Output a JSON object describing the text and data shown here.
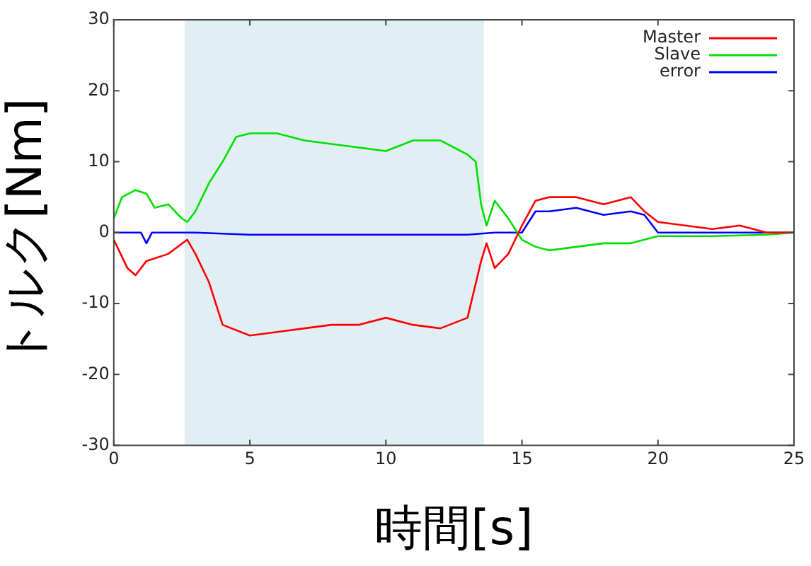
{
  "chart_data": {
    "type": "line",
    "xlabel": "時間[s]",
    "ylabel": "トルク[Nm]",
    "xlim": [
      0,
      25
    ],
    "xticks": [
      0,
      5,
      10,
      15,
      20,
      25
    ],
    "ylim": [
      -30,
      30
    ],
    "yticks": [
      -30,
      -20,
      -10,
      0,
      10,
      20,
      30
    ],
    "grid": false,
    "legend": "top right",
    "marker": "none",
    "line_style": "solid",
    "bands": [
      {
        "axis": "x",
        "from": 2.6,
        "to": 13.6,
        "color": "#e1eff4"
      }
    ],
    "series": [
      {
        "name": "Master",
        "color": "#ff0000",
        "x": [
          0,
          0.5,
          0.8,
          1.2,
          2,
          2.7,
          3,
          3.5,
          4,
          5,
          6,
          7,
          8,
          9,
          10,
          11,
          12,
          13,
          13.5,
          13.7,
          14,
          14.5,
          15,
          15.5,
          16,
          17,
          18,
          19,
          19.5,
          20,
          21,
          22,
          23,
          24,
          25
        ],
        "values": [
          -1,
          -5,
          -6,
          -4,
          -3,
          -1,
          -3,
          -7,
          -13,
          -14.5,
          -14,
          -13.5,
          -13,
          -13,
          -12,
          -13,
          -13.5,
          -12,
          -4,
          -1.5,
          -5,
          -3,
          1,
          4.5,
          5,
          5,
          4,
          5,
          3,
          1.5,
          1,
          0.5,
          1,
          0,
          0
        ]
      },
      {
        "name": "Slave",
        "color": "#00e000",
        "x": [
          0,
          0.3,
          0.8,
          1.2,
          1.5,
          2,
          2.5,
          2.7,
          3,
          3.5,
          4,
          4.5,
          5,
          6,
          7,
          8,
          9,
          10,
          11,
          12,
          13,
          13.3,
          13.5,
          13.7,
          14,
          14.5,
          15,
          15.5,
          16,
          17,
          18,
          19,
          20,
          22,
          24,
          25
        ],
        "values": [
          2,
          5,
          6,
          5.5,
          3.5,
          4,
          2,
          1.5,
          3,
          7,
          10,
          13.5,
          14,
          14,
          13,
          12.5,
          12,
          11.5,
          13,
          13,
          11,
          10,
          4,
          1,
          4.5,
          2,
          -1,
          -2,
          -2.5,
          -2,
          -1.5,
          -1.5,
          -0.5,
          -0.5,
          -0.3,
          0
        ]
      },
      {
        "name": "error",
        "color": "#0000ff",
        "x": [
          0,
          1,
          1.2,
          1.4,
          3,
          5,
          10,
          13,
          14,
          15,
          15.5,
          16,
          17,
          18,
          19,
          19.5,
          20,
          25
        ],
        "values": [
          0,
          0,
          -1.5,
          0,
          0,
          -0.3,
          -0.3,
          -0.3,
          0,
          0,
          3,
          3,
          3.5,
          2.5,
          3,
          2.5,
          0,
          0
        ]
      }
    ]
  }
}
